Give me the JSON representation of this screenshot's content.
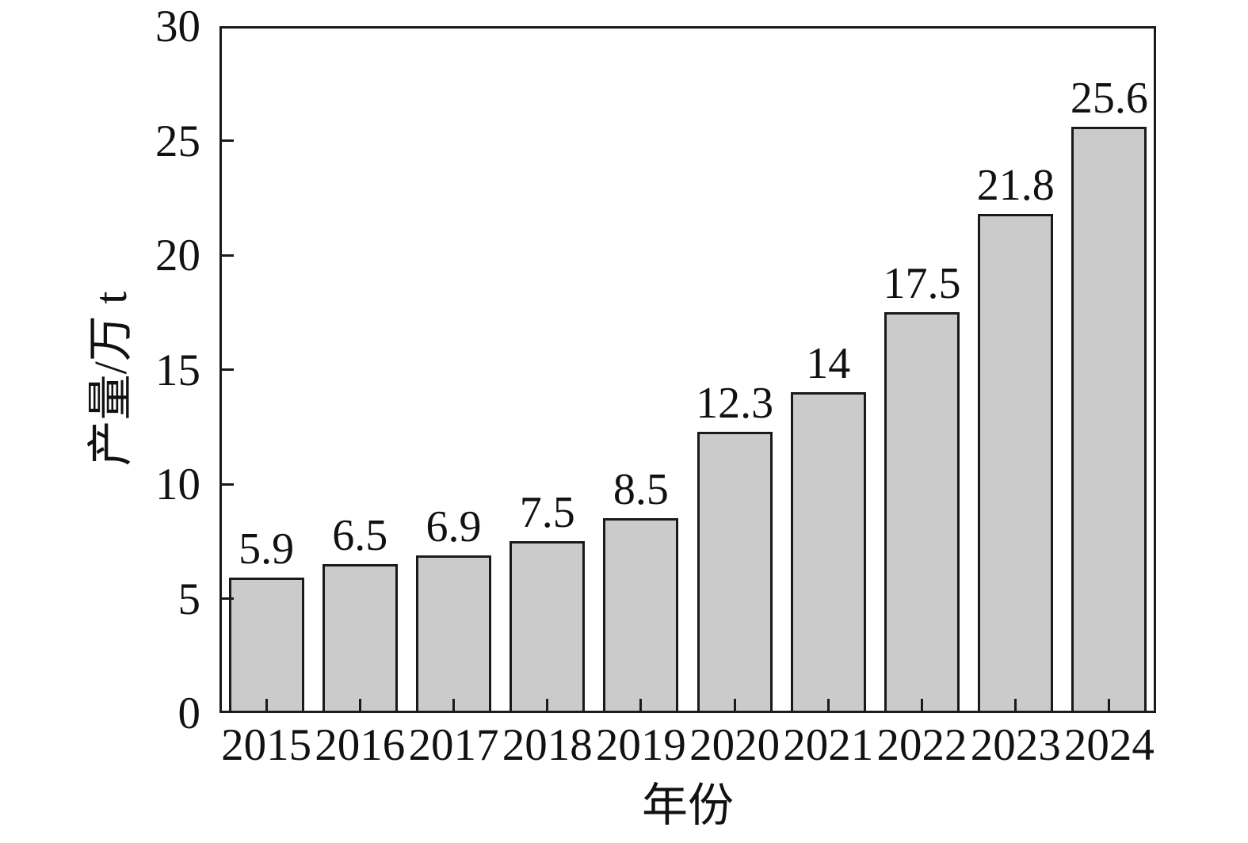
{
  "chart_data": {
    "type": "bar",
    "title": "",
    "xlabel": "年份",
    "ylabel": "产量/万 t",
    "categories": [
      "2015",
      "2016",
      "2017",
      "2018",
      "2019",
      "2020",
      "2021",
      "2022",
      "2023",
      "2024"
    ],
    "values": [
      5.9,
      6.5,
      6.9,
      7.5,
      8.5,
      12.3,
      14,
      17.5,
      21.8,
      25.6
    ],
    "bar_labels": [
      "5.9",
      "6.5",
      "6.9",
      "7.5",
      "8.5",
      "12.3",
      "14",
      "17.5",
      "21.8",
      "25.6"
    ],
    "ylim": [
      0,
      30
    ],
    "yticks": [
      0,
      5,
      10,
      15,
      20,
      25,
      30
    ],
    "grid": false,
    "legend_position": "none",
    "frame": true,
    "tick_direction": "in",
    "colors": {
      "bar_fill": "#cbcbcb",
      "bar_border": "#1a1a1a",
      "axis": "#1a1a1a",
      "text": "#111111",
      "background": "#ffffff"
    }
  }
}
